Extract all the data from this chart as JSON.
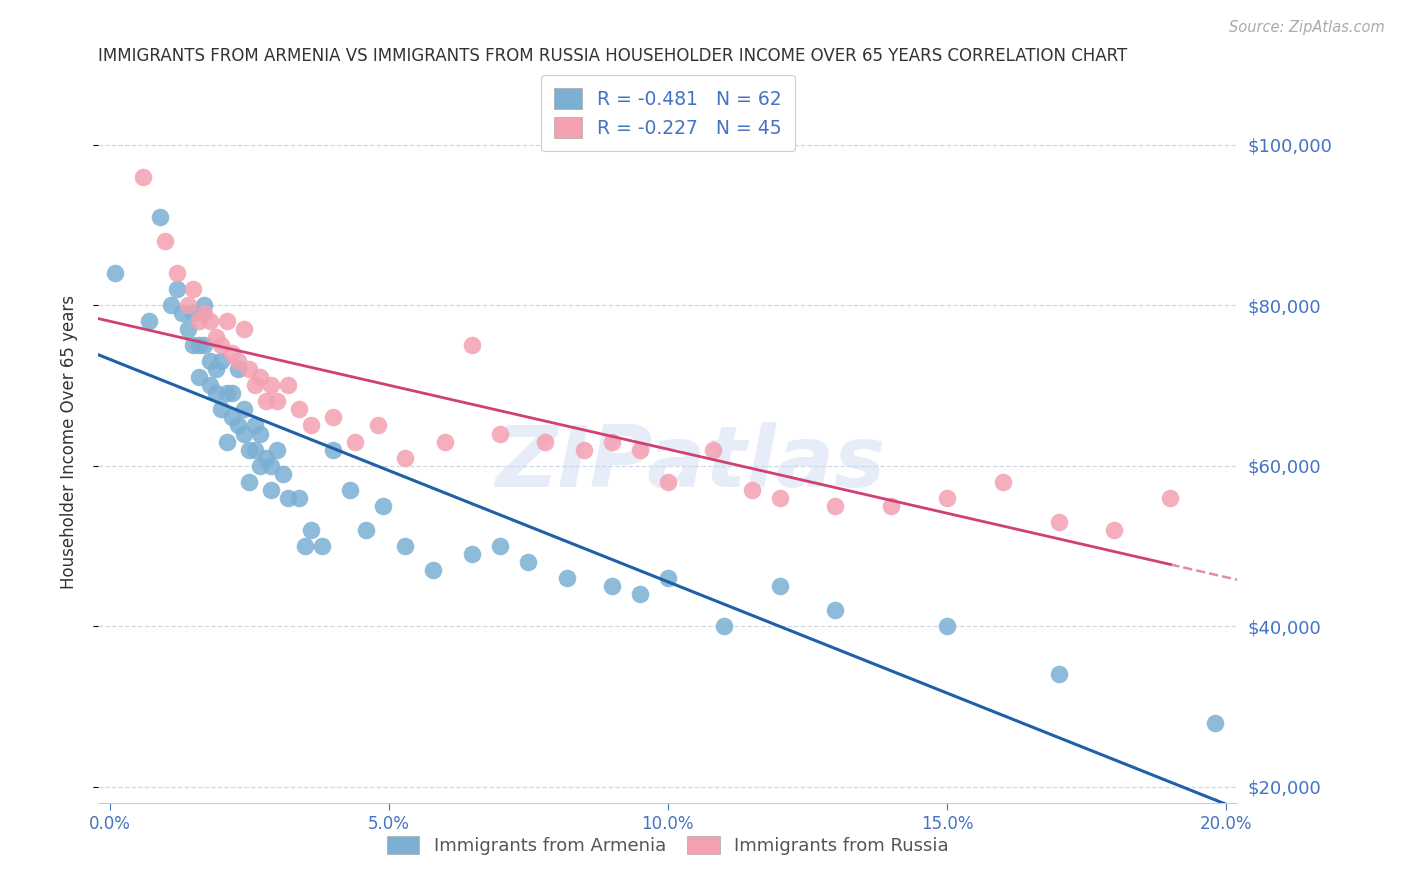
{
  "title": "IMMIGRANTS FROM ARMENIA VS IMMIGRANTS FROM RUSSIA HOUSEHOLDER INCOME OVER 65 YEARS CORRELATION CHART",
  "source": "Source: ZipAtlas.com",
  "ylabel": "Householder Income Over 65 years",
  "xlim": [
    -0.002,
    0.202
  ],
  "ylim": [
    18000,
    108000
  ],
  "armenia_color": "#7bafd4",
  "russia_color": "#f4a0b0",
  "armenia_label": "Immigrants from Armenia",
  "russia_label": "Immigrants from Russia",
  "legend_R_armenia": "-0.481",
  "legend_N_armenia": "62",
  "legend_R_russia": "-0.227",
  "legend_N_russia": "45",
  "armenia_x": [
    0.001,
    0.007,
    0.009,
    0.011,
    0.012,
    0.013,
    0.014,
    0.015,
    0.015,
    0.016,
    0.016,
    0.017,
    0.017,
    0.018,
    0.018,
    0.019,
    0.019,
    0.02,
    0.02,
    0.021,
    0.021,
    0.022,
    0.022,
    0.023,
    0.023,
    0.024,
    0.024,
    0.025,
    0.025,
    0.026,
    0.026,
    0.027,
    0.027,
    0.028,
    0.029,
    0.029,
    0.03,
    0.031,
    0.032,
    0.034,
    0.035,
    0.036,
    0.038,
    0.04,
    0.043,
    0.046,
    0.049,
    0.053,
    0.058,
    0.065,
    0.07,
    0.075,
    0.082,
    0.09,
    0.095,
    0.1,
    0.11,
    0.12,
    0.13,
    0.15,
    0.17,
    0.198
  ],
  "armenia_y": [
    84000,
    78000,
    91000,
    80000,
    82000,
    79000,
    77000,
    75000,
    79000,
    75000,
    71000,
    75000,
    80000,
    73000,
    70000,
    69000,
    72000,
    73000,
    67000,
    69000,
    63000,
    66000,
    69000,
    65000,
    72000,
    64000,
    67000,
    62000,
    58000,
    65000,
    62000,
    60000,
    64000,
    61000,
    57000,
    60000,
    62000,
    59000,
    56000,
    56000,
    50000,
    52000,
    50000,
    62000,
    57000,
    52000,
    55000,
    50000,
    47000,
    49000,
    50000,
    48000,
    46000,
    45000,
    44000,
    46000,
    40000,
    45000,
    42000,
    40000,
    34000,
    28000
  ],
  "russia_x": [
    0.006,
    0.01,
    0.012,
    0.014,
    0.015,
    0.016,
    0.017,
    0.018,
    0.019,
    0.02,
    0.021,
    0.022,
    0.023,
    0.024,
    0.025,
    0.026,
    0.027,
    0.028,
    0.029,
    0.03,
    0.032,
    0.034,
    0.036,
    0.04,
    0.044,
    0.048,
    0.053,
    0.06,
    0.065,
    0.07,
    0.078,
    0.085,
    0.09,
    0.095,
    0.1,
    0.108,
    0.115,
    0.12,
    0.13,
    0.14,
    0.15,
    0.16,
    0.17,
    0.18,
    0.19
  ],
  "russia_y": [
    96000,
    88000,
    84000,
    80000,
    82000,
    78000,
    79000,
    78000,
    76000,
    75000,
    78000,
    74000,
    73000,
    77000,
    72000,
    70000,
    71000,
    68000,
    70000,
    68000,
    70000,
    67000,
    65000,
    66000,
    63000,
    65000,
    61000,
    63000,
    75000,
    64000,
    63000,
    62000,
    63000,
    62000,
    58000,
    62000,
    57000,
    56000,
    55000,
    55000,
    56000,
    58000,
    53000,
    52000,
    56000
  ],
  "watermark": "ZIPatlas",
  "background_color": "#ffffff",
  "grid_color": "#d0d8e8",
  "title_color": "#333333",
  "right_axis_color": "#4472c4",
  "bottom_axis_color": "#4472c4",
  "line_armenia_color": "#2060a8",
  "line_russia_color": "#d04070",
  "ytick_vals": [
    20000,
    40000,
    60000,
    80000,
    100000
  ],
  "ytick_labels": [
    "$20,000",
    "$40,000",
    "$60,000",
    "$80,000",
    "$100,000"
  ],
  "xtick_vals": [
    0.0,
    0.05,
    0.1,
    0.15,
    0.2
  ],
  "xtick_labels": [
    "0.0%",
    "5.0%",
    "10.0%",
    "15.0%",
    "20.0%"
  ]
}
